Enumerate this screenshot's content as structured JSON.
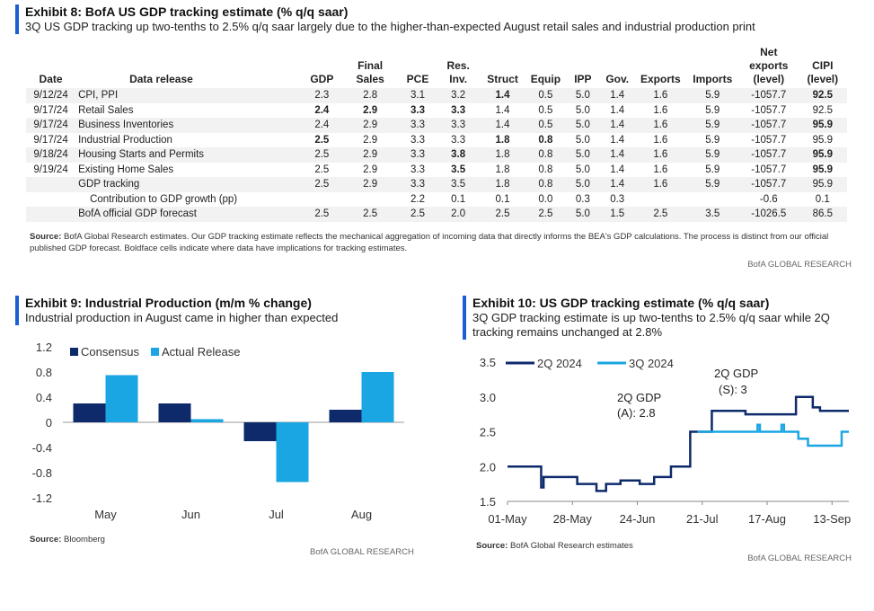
{
  "colors": {
    "navy": "#0e2a6b",
    "cyan": "#1aa6e2",
    "accent": "#1a5fd6"
  },
  "exhibit8": {
    "title": "Exhibit 8: BofA US GDP tracking estimate (% q/q saar)",
    "subtitle": "3Q US GDP tracking up two-tenths to 2.5% q/q saar largely due to the higher-than-expected August retail sales and industrial production print",
    "columns": [
      "Date",
      "Data release",
      "GDP",
      "Final Sales",
      "PCE",
      "Res. Inv.",
      "Struct",
      "Equip",
      "IPP",
      "Gov.",
      "Exports",
      "Imports",
      "Net exports (level)",
      "CIPI (level)"
    ],
    "rows": [
      {
        "cells": [
          "9/12/24",
          "CPI, PPI",
          "2.3",
          "2.8",
          "3.1",
          "3.2",
          "1.4",
          "0.5",
          "5.0",
          "1.4",
          "1.6",
          "5.9",
          "-1057.7",
          "92.5"
        ],
        "bold": [
          6,
          13
        ]
      },
      {
        "cells": [
          "9/17/24",
          "Retail Sales",
          "2.4",
          "2.9",
          "3.3",
          "3.3",
          "1.4",
          "0.5",
          "5.0",
          "1.4",
          "1.6",
          "5.9",
          "-1057.7",
          "92.5"
        ],
        "bold": [
          2,
          3,
          4,
          5
        ]
      },
      {
        "cells": [
          "9/17/24",
          "Business Inventories",
          "2.4",
          "2.9",
          "3.3",
          "3.3",
          "1.4",
          "0.5",
          "5.0",
          "1.4",
          "1.6",
          "5.9",
          "-1057.7",
          "95.9"
        ],
        "bold": [
          13
        ]
      },
      {
        "cells": [
          "9/17/24",
          "Industrial Production",
          "2.5",
          "2.9",
          "3.3",
          "3.3",
          "1.8",
          "0.8",
          "5.0",
          "1.4",
          "1.6",
          "5.9",
          "-1057.7",
          "95.9"
        ],
        "bold": [
          2,
          6,
          7
        ]
      },
      {
        "cells": [
          "9/18/24",
          "Housing Starts and Permits",
          "2.5",
          "2.9",
          "3.3",
          "3.8",
          "1.8",
          "0.8",
          "5.0",
          "1.4",
          "1.6",
          "5.9",
          "-1057.7",
          "95.9"
        ],
        "bold": [
          5,
          13
        ]
      },
      {
        "cells": [
          "9/19/24",
          "Existing Home Sales",
          "2.5",
          "2.9",
          "3.3",
          "3.5",
          "1.8",
          "0.8",
          "5.0",
          "1.4",
          "1.6",
          "5.9",
          "-1057.7",
          "95.9"
        ],
        "bold": [
          5,
          13
        ]
      },
      {
        "cells": [
          "",
          "GDP tracking",
          "2.5",
          "2.9",
          "3.3",
          "3.5",
          "1.8",
          "0.8",
          "5.0",
          "1.4",
          "1.6",
          "5.9",
          "-1057.7",
          "95.9"
        ],
        "bold": []
      },
      {
        "cells": [
          "",
          "Contribution to GDP growth (pp)",
          "",
          "",
          "2.2",
          "0.1",
          "0.1",
          "0.0",
          "0.3",
          "0.3",
          "",
          "",
          "-0.6",
          "0.1"
        ],
        "bold": [],
        "indent": true
      },
      {
        "cells": [
          "",
          "BofA official GDP forecast",
          "2.5",
          "2.5",
          "2.5",
          "2.0",
          "2.5",
          "2.5",
          "5.0",
          "1.5",
          "2.5",
          "3.5",
          "-1026.5",
          "86.5"
        ],
        "bold": []
      }
    ],
    "source_label": "Source:",
    "source_text": "BofA Global Research estimates. Our GDP tracking estimate reflects the mechanical aggregation of incoming data that directly informs the BEA's GDP calculations. The process is distinct from our official published GDP forecast. Boldface cells indicate where data have implications for tracking estimates.",
    "brand": "BofA GLOBAL RESEARCH"
  },
  "exhibit9": {
    "title": "Exhibit 9: Industrial Production (m/m % change)",
    "subtitle": "Industrial production in August came in higher than expected",
    "source_label": "Source:",
    "source_text": "Bloomberg",
    "brand": "BofA GLOBAL RESEARCH"
  },
  "exhibit10": {
    "title": "Exhibit 10: US GDP tracking estimate (% q/q saar)",
    "subtitle_line1": "3Q GDP tracking estimate is up two-tenths to 2.5% q/q saar while 2Q",
    "subtitle_line2": "tracking remains unchanged at 2.8%",
    "annotation_a_line1": "2Q GDP",
    "annotation_a_line2": "(A): 2.8",
    "annotation_s_line1": "2Q GDP",
    "annotation_s_line2": "(S): 3",
    "source_label": "Source:",
    "source_text": "BofA Global Research estimates",
    "brand": "BofA GLOBAL RESEARCH"
  },
  "chart_data": [
    {
      "type": "bar",
      "categories": [
        "May",
        "Jun",
        "Jul",
        "Aug"
      ],
      "series": [
        {
          "name": "Consensus",
          "color": "#0e2a6b",
          "values": [
            0.3,
            0.3,
            -0.3,
            0.2
          ]
        },
        {
          "name": "Actual Release",
          "color": "#1aa6e2",
          "values": [
            0.75,
            0.05,
            -0.95,
            0.8
          ]
        }
      ],
      "ylim": [
        -1.2,
        1.2
      ],
      "yticks": [
        "1.2",
        "0.8",
        "0.4",
        "0",
        "-0.4",
        "-0.8",
        "-1.2"
      ],
      "legend": "top-left"
    },
    {
      "type": "line",
      "x_start": "2024-05-01",
      "x_end": "2024-09-20",
      "xticks": [
        "01-May",
        "28-May",
        "24-Jun",
        "21-Jul",
        "17-Aug",
        "13-Sep"
      ],
      "yticks": [
        "3.5",
        "3.0",
        "2.5",
        "2.0",
        "1.5"
      ],
      "ylim": [
        1.5,
        3.5
      ],
      "legend": "top-left",
      "series": [
        {
          "name": "2Q 2024",
          "color": "#0e2a6b",
          "points": [
            [
              "2024-05-01",
              2.0
            ],
            [
              "2024-05-09",
              2.0
            ],
            [
              "2024-05-15",
              1.7
            ],
            [
              "2024-05-16",
              1.85
            ],
            [
              "2024-05-24",
              1.85
            ],
            [
              "2024-05-30",
              1.75
            ],
            [
              "2024-06-06",
              1.75
            ],
            [
              "2024-06-07",
              1.65
            ],
            [
              "2024-06-11",
              1.75
            ],
            [
              "2024-06-14",
              1.75
            ],
            [
              "2024-06-17",
              1.8
            ],
            [
              "2024-06-25",
              1.75
            ],
            [
              "2024-06-28",
              1.75
            ],
            [
              "2024-07-01",
              1.85
            ],
            [
              "2024-07-08",
              2.0
            ],
            [
              "2024-07-11",
              2.0
            ],
            [
              "2024-07-12",
              2.0
            ],
            [
              "2024-07-16",
              2.5
            ],
            [
              "2024-07-19",
              2.5
            ],
            [
              "2024-07-25",
              2.8
            ],
            [
              "2024-08-05",
              2.8
            ],
            [
              "2024-08-08",
              2.75
            ],
            [
              "2024-08-13",
              2.75
            ],
            [
              "2024-08-15",
              2.75
            ],
            [
              "2024-08-23",
              2.75
            ],
            [
              "2024-08-26",
              2.75
            ],
            [
              "2024-08-29",
              3.0
            ],
            [
              "2024-09-02",
              3.0
            ],
            [
              "2024-09-05",
              2.85
            ],
            [
              "2024-09-08",
              2.8
            ],
            [
              "2024-09-20",
              2.8
            ]
          ]
        },
        {
          "name": "3Q 2024",
          "color": "#1aa6e2",
          "points": [
            [
              "2024-07-19",
              2.5
            ],
            [
              "2024-08-12",
              2.5
            ],
            [
              "2024-08-13",
              2.6
            ],
            [
              "2024-08-14",
              2.5
            ],
            [
              "2024-08-15",
              2.5
            ],
            [
              "2024-08-22",
              2.5
            ],
            [
              "2024-08-23",
              2.6
            ],
            [
              "2024-08-24",
              2.5
            ],
            [
              "2024-08-29",
              2.5
            ],
            [
              "2024-08-30",
              2.4
            ],
            [
              "2024-09-01",
              2.4
            ],
            [
              "2024-09-03",
              2.3
            ],
            [
              "2024-09-16",
              2.3
            ],
            [
              "2024-09-17",
              2.5
            ],
            [
              "2024-09-20",
              2.5
            ]
          ]
        }
      ]
    }
  ]
}
